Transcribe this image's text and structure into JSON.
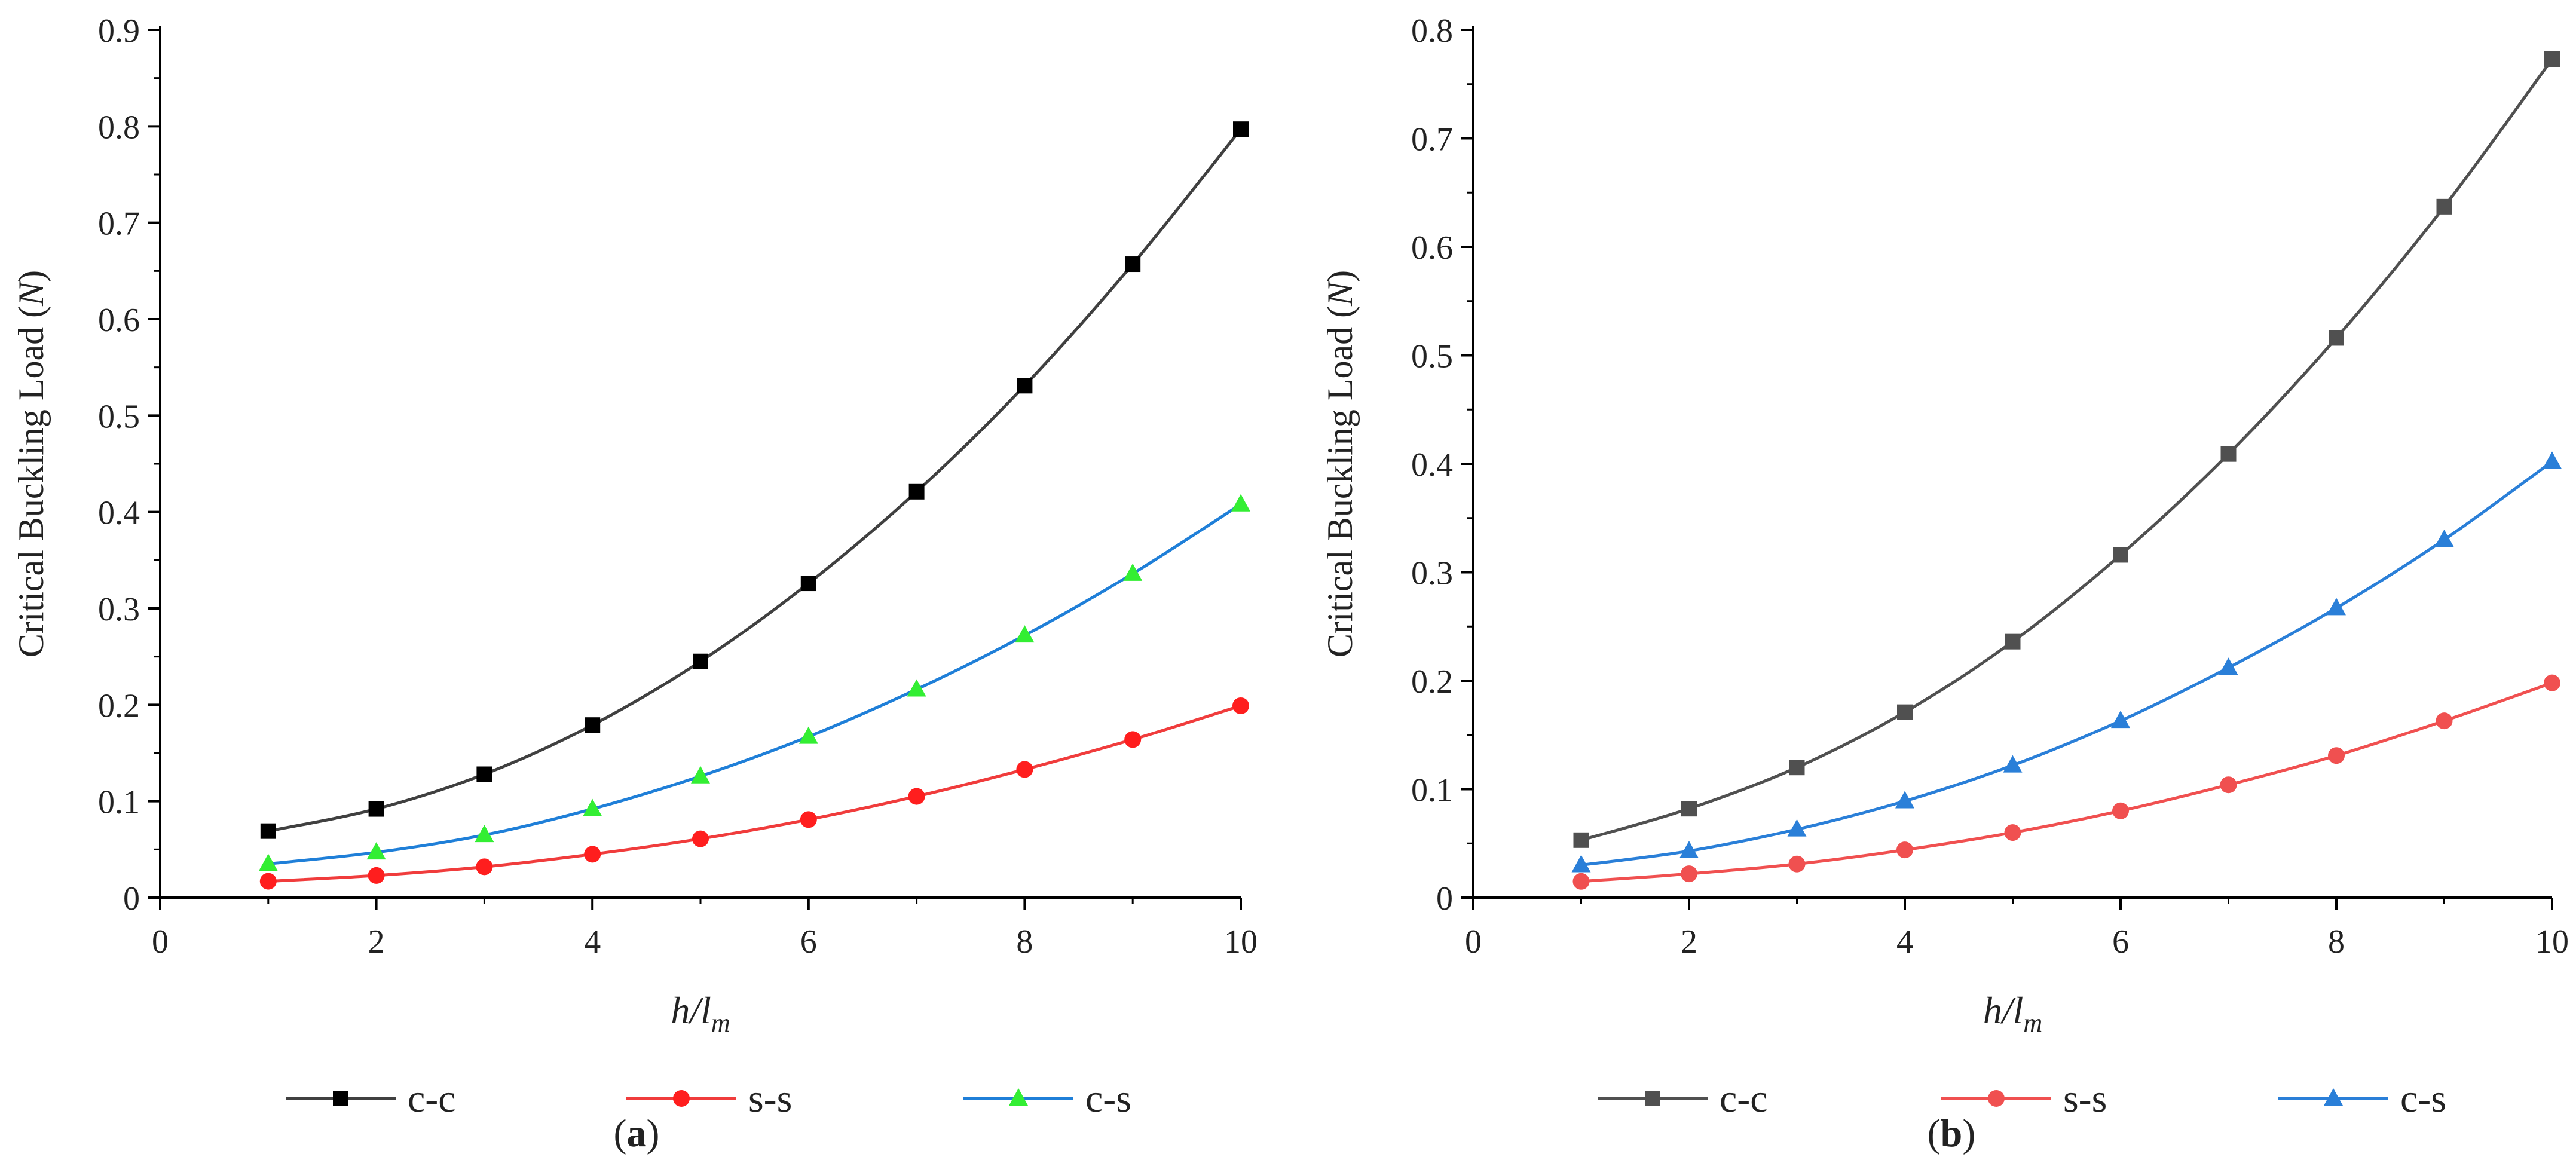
{
  "figure": {
    "panels": [
      {
        "label": "(a)"
      },
      {
        "label": "(b)"
      }
    ]
  },
  "chart_data": [
    {
      "type": "line",
      "panel": "(a)",
      "xlabel": "h/l_m",
      "ylabel": "Critical Buckling Load (N)",
      "xlim": [
        0,
        10
      ],
      "ylim": [
        0,
        0.9
      ],
      "x_ticks": [
        0,
        2,
        4,
        6,
        8,
        10
      ],
      "y_ticks": [
        0,
        0.1,
        0.2,
        0.3,
        0.4,
        0.5,
        0.6,
        0.7,
        0.8,
        0.9
      ],
      "x": [
        1,
        2,
        3,
        4,
        5,
        6,
        7,
        8,
        9,
        10
      ],
      "legend_position": "bottom",
      "series": [
        {
          "name": "c-c",
          "color": "#404040",
          "marker": "square",
          "marker_color": "#000000",
          "values": [
            0.069,
            0.092,
            0.128,
            0.179,
            0.245,
            0.326,
            0.421,
            0.531,
            0.657,
            0.797
          ]
        },
        {
          "name": "s-s",
          "color": "#f03c3c",
          "marker": "circle",
          "marker_color": "#ff1e1e",
          "values": [
            0.017,
            0.023,
            0.032,
            0.045,
            0.061,
            0.081,
            0.105,
            0.133,
            0.164,
            0.199
          ]
        },
        {
          "name": "c-s",
          "color": "#1f7fd8",
          "marker": "triangle",
          "marker_color": "#33ee33",
          "values": [
            0.035,
            0.047,
            0.065,
            0.092,
            0.126,
            0.167,
            0.216,
            0.272,
            0.336,
            0.408
          ]
        }
      ]
    },
    {
      "type": "line",
      "panel": "(b)",
      "xlabel": "h/l_m",
      "ylabel": "Critical Buckling Load (N)",
      "xlim": [
        0,
        10
      ],
      "ylim": [
        0,
        0.8
      ],
      "x_ticks": [
        0,
        2,
        4,
        6,
        8,
        10
      ],
      "y_ticks": [
        0,
        0.1,
        0.2,
        0.3,
        0.4,
        0.5,
        0.6,
        0.7,
        0.8
      ],
      "x": [
        1,
        2,
        3,
        4,
        5,
        6,
        7,
        8,
        9,
        10
      ],
      "legend_position": "bottom",
      "series": [
        {
          "name": "c-c",
          "color": "#505050",
          "marker": "square",
          "marker_color": "#505050",
          "values": [
            0.053,
            0.082,
            0.12,
            0.171,
            0.236,
            0.316,
            0.409,
            0.516,
            0.637,
            0.773
          ]
        },
        {
          "name": "s-s",
          "color": "#f05050",
          "marker": "circle",
          "marker_color": "#f05050",
          "values": [
            0.015,
            0.022,
            0.031,
            0.044,
            0.06,
            0.08,
            0.104,
            0.131,
            0.163,
            0.198
          ]
        },
        {
          "name": "c-s",
          "color": "#2a7fd8",
          "marker": "triangle",
          "marker_color": "#2a7fd8",
          "values": [
            0.03,
            0.043,
            0.063,
            0.089,
            0.122,
            0.163,
            0.212,
            0.267,
            0.33,
            0.402
          ]
        }
      ]
    }
  ]
}
